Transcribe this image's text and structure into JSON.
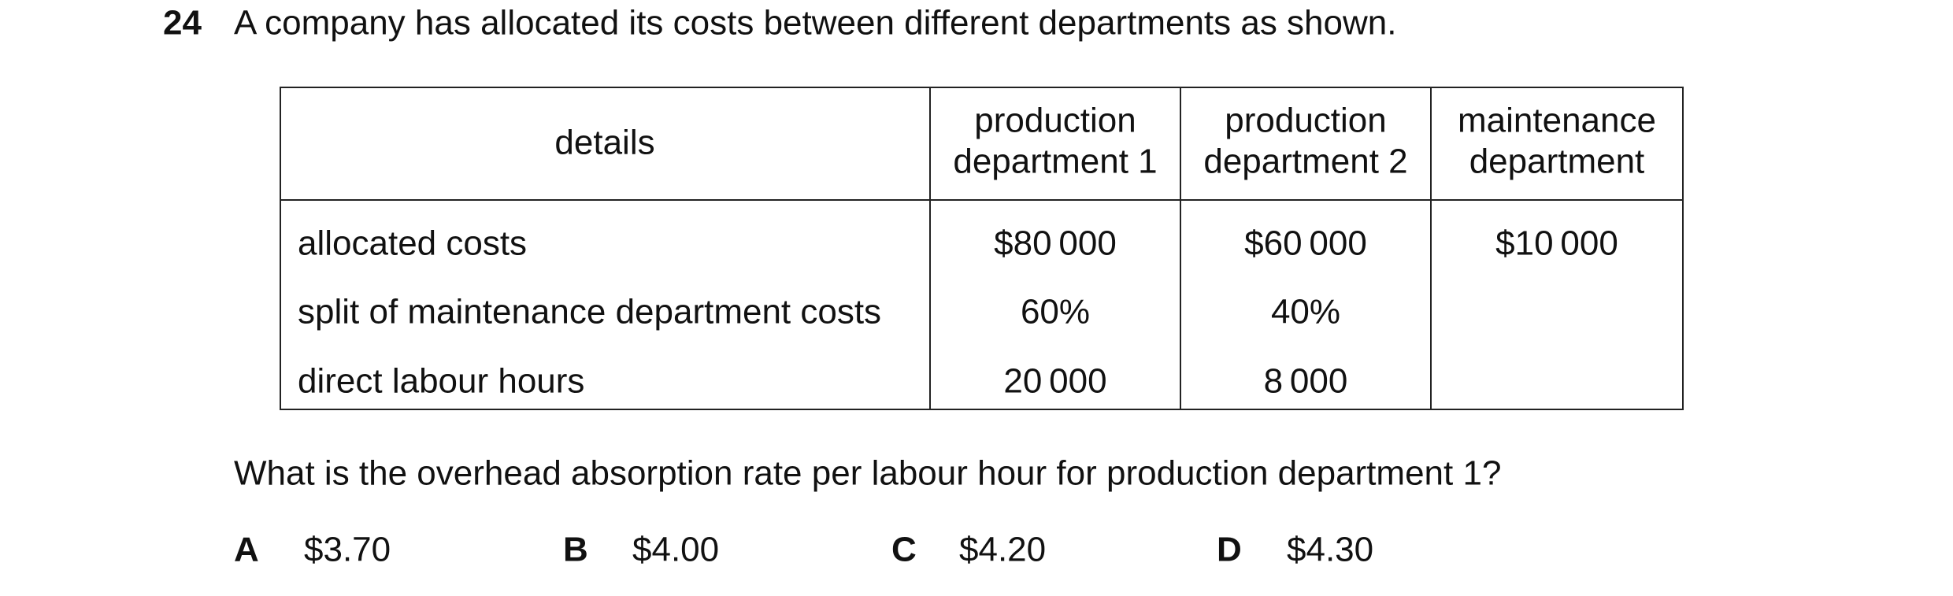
{
  "question": {
    "number": "24",
    "stem": "A company has allocated its costs between different departments as shown.",
    "table": {
      "header": [
        "details",
        [
          "production",
          "department 1"
        ],
        [
          "production",
          "department 2"
        ],
        [
          "maintenance",
          "department"
        ]
      ],
      "rows": [
        [
          "allocated costs",
          "$80 000",
          "$60 000",
          "$10 000"
        ],
        [
          "split of maintenance department costs",
          "60%",
          "40%",
          ""
        ],
        [
          "direct labour hours",
          "20 000",
          "8 000",
          ""
        ]
      ]
    },
    "prompt": "What is the overhead absorption rate per labour hour for production department 1?",
    "options": [
      {
        "letter": "A",
        "text": "$3.70"
      },
      {
        "letter": "B",
        "text": "$4.00"
      },
      {
        "letter": "C",
        "text": "$4.20"
      },
      {
        "letter": "D",
        "text": "$4.30"
      }
    ]
  }
}
